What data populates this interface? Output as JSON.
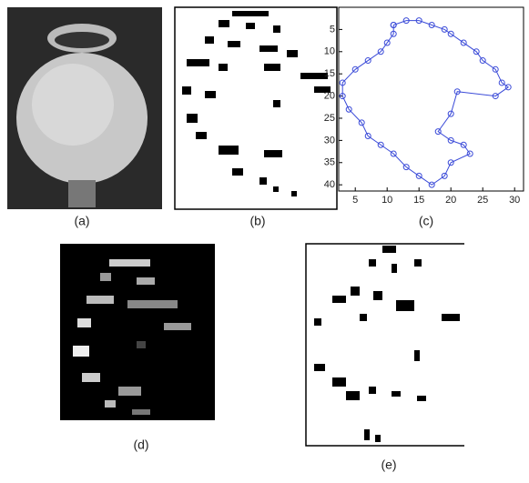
{
  "panels": [
    {
      "caption": "(a)"
    },
    {
      "caption": "(b)"
    },
    {
      "caption": "(c)"
    },
    {
      "caption": "(d)"
    },
    {
      "caption": "(e)"
    }
  ],
  "chart_data": {
    "type": "line",
    "color": "#3a4ad8",
    "xlim": [
      2.4,
      31.4
    ],
    "ylim": [
      41.4,
      0
    ],
    "xticks": [
      5,
      10,
      15,
      20,
      25,
      30
    ],
    "yticks": [
      5,
      10,
      15,
      20,
      25,
      30,
      35,
      40
    ],
    "x": [
      11,
      13,
      15,
      17,
      19,
      20,
      22,
      24,
      25,
      27,
      28,
      29,
      27,
      21,
      20,
      18,
      20,
      22,
      23,
      20,
      19,
      17,
      15,
      13,
      11,
      9,
      7,
      6,
      4,
      3,
      3,
      5,
      7,
      9,
      10,
      11,
      11
    ],
    "y": [
      4,
      3,
      3,
      4,
      5,
      6,
      8,
      10,
      12,
      14,
      17,
      18,
      20,
      19,
      24,
      28,
      30,
      31,
      33,
      35,
      38,
      40,
      38,
      36,
      33,
      31,
      29,
      26,
      23,
      20,
      17,
      14,
      12,
      10,
      8,
      6,
      4
    ]
  }
}
